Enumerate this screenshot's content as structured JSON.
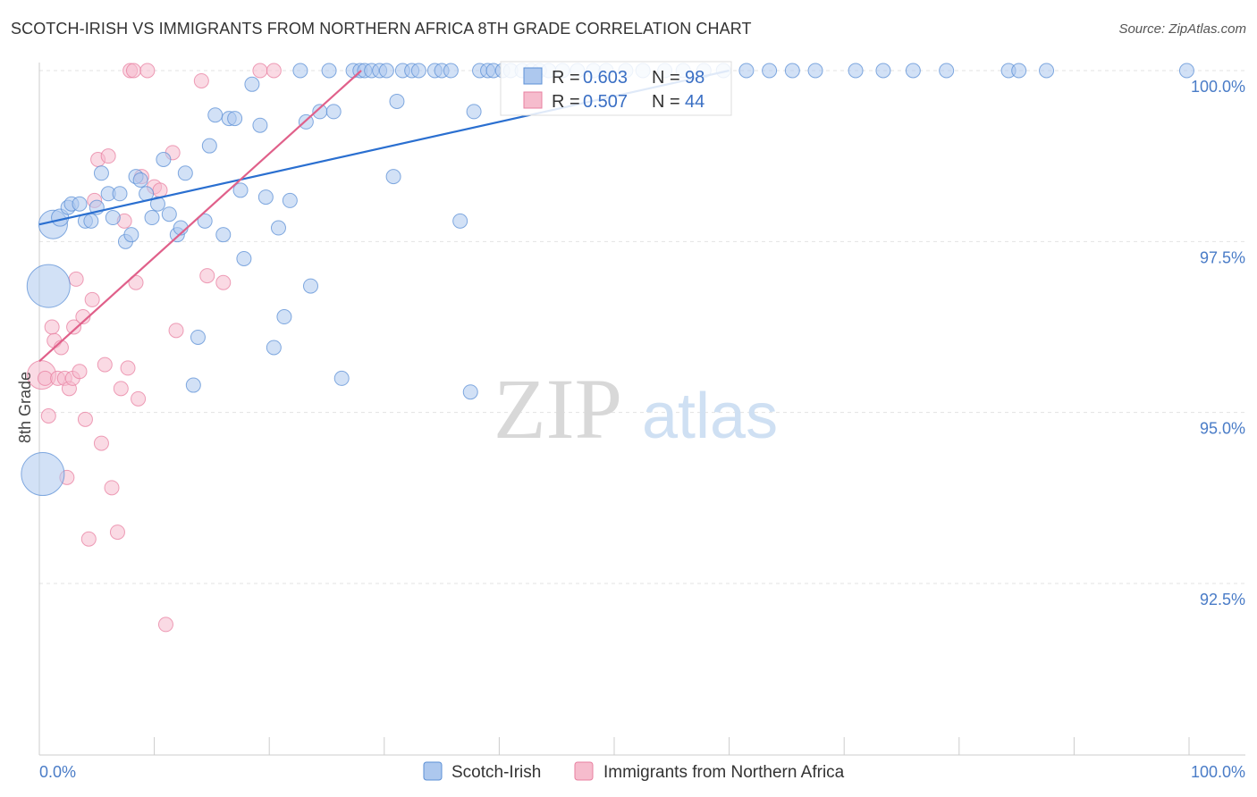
{
  "header": {
    "title": "SCOTCH-IRISH VS IMMIGRANTS FROM NORTHERN AFRICA 8TH GRADE CORRELATION CHART",
    "source": "Source: ZipAtlas.com"
  },
  "colors": {
    "blue": "#5b8fd6",
    "blue_fill": "#adc8ee",
    "blue_line": "#2a6fd0",
    "pink": "#e87fa0",
    "pink_fill": "#f6bccd",
    "pink_line": "#e0608a",
    "tick": "#4a7cc7",
    "grid": "#e3e3e3"
  },
  "watermark": {
    "zip": "ZIP",
    "atlas": "atlas"
  },
  "chart_data": {
    "type": "scatter",
    "title": "SCOTCH-IRISH VS IMMIGRANTS FROM NORTHERN AFRICA 8TH GRADE CORRELATION CHART",
    "xlabel": "",
    "ylabel": "8th Grade",
    "xlim": [
      0,
      100
    ],
    "ylim": [
      90.0,
      100.3
    ],
    "x_tick_labels": [
      "0.0%",
      "100.0%"
    ],
    "y_ticks": [
      92.5,
      95.0,
      97.5,
      100.0
    ],
    "y_tick_labels": [
      "92.5%",
      "95.0%",
      "97.5%",
      "100.0%"
    ],
    "grid": true,
    "legend": {
      "placement": "top-center",
      "entries": [
        {
          "r_label": "R = ",
          "r_value": "0.603",
          "n_label": "N = ",
          "n_value": "98"
        },
        {
          "r_label": "R = ",
          "r_value": "0.507",
          "n_label": "N = ",
          "n_value": "44"
        }
      ]
    },
    "series": [
      {
        "name": "Scotch-Irish",
        "color": "#5b8fd6",
        "trend": {
          "x": [
            0.0,
            60.0
          ],
          "y": [
            97.75,
            100.0
          ]
        },
        "points": [
          [
            0.3,
            94.1,
            3.0
          ],
          [
            0.8,
            96.85,
            3.0
          ],
          [
            1.2,
            97.75,
            2.0
          ],
          [
            1.8,
            97.85,
            1.2
          ],
          [
            2.5,
            98.0,
            1.0
          ],
          [
            2.8,
            98.05,
            1.0
          ],
          [
            3.5,
            98.05,
            1.0
          ],
          [
            4.0,
            97.8,
            1.0
          ],
          [
            4.5,
            97.8,
            1.0
          ],
          [
            5.0,
            98.0,
            1.0
          ],
          [
            5.4,
            98.5,
            1.0
          ],
          [
            6.0,
            98.2,
            1.0
          ],
          [
            6.4,
            97.85,
            1.0
          ],
          [
            7.0,
            98.2,
            1.0
          ],
          [
            7.5,
            97.5,
            1.0
          ],
          [
            8.0,
            97.6,
            1.0
          ],
          [
            8.4,
            98.45,
            1.0
          ],
          [
            8.8,
            98.4,
            1.0
          ],
          [
            9.3,
            98.2,
            1.0
          ],
          [
            9.8,
            97.85,
            1.0
          ],
          [
            10.3,
            98.05,
            1.0
          ],
          [
            10.8,
            98.7,
            1.0
          ],
          [
            11.3,
            97.9,
            1.0
          ],
          [
            12.0,
            97.6,
            1.0
          ],
          [
            12.3,
            97.7,
            1.0
          ],
          [
            12.7,
            98.5,
            1.0
          ],
          [
            13.4,
            95.4,
            1.0
          ],
          [
            13.8,
            96.1,
            1.0
          ],
          [
            14.4,
            97.8,
            1.0
          ],
          [
            14.8,
            98.9,
            1.0
          ],
          [
            15.3,
            99.35,
            1.0
          ],
          [
            16.0,
            97.6,
            1.0
          ],
          [
            16.5,
            99.3,
            1.0
          ],
          [
            17.0,
            99.3,
            1.0
          ],
          [
            17.5,
            98.25,
            1.0
          ],
          [
            17.8,
            97.25,
            1.0
          ],
          [
            18.5,
            99.8,
            1.0
          ],
          [
            19.2,
            99.2,
            1.0
          ],
          [
            19.7,
            98.15,
            1.0
          ],
          [
            20.4,
            95.95,
            1.0
          ],
          [
            20.8,
            97.7,
            1.0
          ],
          [
            21.3,
            96.4,
            1.0
          ],
          [
            21.8,
            98.1,
            1.0
          ],
          [
            22.7,
            100.0,
            1.0
          ],
          [
            23.2,
            99.25,
            1.0
          ],
          [
            23.6,
            96.85,
            1.0
          ],
          [
            24.4,
            99.4,
            1.0
          ],
          [
            25.2,
            100.0,
            1.0
          ],
          [
            25.6,
            99.4,
            1.0
          ],
          [
            26.3,
            95.5,
            1.0
          ],
          [
            27.3,
            100.0,
            1.0
          ],
          [
            27.9,
            100.0,
            1.0
          ],
          [
            28.3,
            100.0,
            1.0
          ],
          [
            28.9,
            100.0,
            1.0
          ],
          [
            29.6,
            100.0,
            1.0
          ],
          [
            30.2,
            100.0,
            1.0
          ],
          [
            30.8,
            98.45,
            1.0
          ],
          [
            31.1,
            99.55,
            1.0
          ],
          [
            31.6,
            100.0,
            1.0
          ],
          [
            32.4,
            100.0,
            1.0
          ],
          [
            33.0,
            100.0,
            1.0
          ],
          [
            34.4,
            100.0,
            1.0
          ],
          [
            35.0,
            100.0,
            1.0
          ],
          [
            35.8,
            100.0,
            1.0
          ],
          [
            36.6,
            97.8,
            1.0
          ],
          [
            37.5,
            95.3,
            1.0
          ],
          [
            37.8,
            99.4,
            1.0
          ],
          [
            38.3,
            100.0,
            1.0
          ],
          [
            39.0,
            100.0,
            1.0
          ],
          [
            39.5,
            100.0,
            1.0
          ],
          [
            40.3,
            100.0,
            1.0
          ],
          [
            41.0,
            100.0,
            1.0
          ],
          [
            42.0,
            100.0,
            1.0
          ],
          [
            42.8,
            100.0,
            1.0
          ],
          [
            43.5,
            100.0,
            1.0
          ],
          [
            44.3,
            100.0,
            1.0
          ],
          [
            45.5,
            100.0,
            1.0
          ],
          [
            46.8,
            100.0,
            1.0
          ],
          [
            48.2,
            100.0,
            1.0
          ],
          [
            49.3,
            100.0,
            1.0
          ],
          [
            51.0,
            100.0,
            1.0
          ],
          [
            52.5,
            100.0,
            1.0
          ],
          [
            54.4,
            100.0,
            1.0
          ],
          [
            56.0,
            100.0,
            1.0
          ],
          [
            57.8,
            100.0,
            1.0
          ],
          [
            59.5,
            100.0,
            1.0
          ],
          [
            61.5,
            100.0,
            1.0
          ],
          [
            63.5,
            100.0,
            1.0
          ],
          [
            65.5,
            100.0,
            1.0
          ],
          [
            67.5,
            100.0,
            1.0
          ],
          [
            71.0,
            100.0,
            1.0
          ],
          [
            73.4,
            100.0,
            1.0
          ],
          [
            76.0,
            100.0,
            1.0
          ],
          [
            78.9,
            100.0,
            1.0
          ],
          [
            84.3,
            100.0,
            1.0
          ],
          [
            85.2,
            100.0,
            1.0
          ],
          [
            87.6,
            100.0,
            1.0
          ],
          [
            99.8,
            100.0,
            1.0
          ]
        ]
      },
      {
        "name": "Immigrants from Northern Africa",
        "color": "#e87fa0",
        "trend": {
          "x": [
            0.0,
            28.0
          ],
          "y": [
            95.75,
            100.0
          ]
        },
        "points": [
          [
            0.2,
            95.55,
            2.0
          ],
          [
            0.5,
            95.5,
            1.0
          ],
          [
            0.8,
            94.95,
            1.0
          ],
          [
            1.1,
            96.25,
            1.0
          ],
          [
            1.3,
            96.05,
            1.0
          ],
          [
            1.6,
            95.5,
            1.0
          ],
          [
            1.9,
            95.95,
            1.0
          ],
          [
            2.2,
            95.5,
            1.0
          ],
          [
            2.4,
            94.05,
            1.0
          ],
          [
            2.6,
            95.35,
            1.0
          ],
          [
            2.9,
            95.5,
            1.0
          ],
          [
            3.0,
            96.25,
            1.0
          ],
          [
            3.2,
            96.95,
            1.0
          ],
          [
            3.5,
            95.6,
            1.0
          ],
          [
            3.8,
            96.4,
            1.0
          ],
          [
            4.0,
            94.9,
            1.0
          ],
          [
            4.3,
            93.15,
            1.0
          ],
          [
            4.6,
            96.65,
            1.0
          ],
          [
            4.8,
            98.1,
            1.0
          ],
          [
            5.1,
            98.7,
            1.0
          ],
          [
            5.4,
            94.55,
            1.0
          ],
          [
            5.7,
            95.7,
            1.0
          ],
          [
            6.0,
            98.75,
            1.0
          ],
          [
            6.3,
            93.9,
            1.0
          ],
          [
            6.8,
            93.25,
            1.0
          ],
          [
            7.1,
            95.35,
            1.0
          ],
          [
            7.4,
            97.8,
            1.0
          ],
          [
            7.7,
            95.65,
            1.0
          ],
          [
            7.9,
            100.0,
            1.0
          ],
          [
            8.2,
            100.0,
            1.0
          ],
          [
            8.4,
            96.9,
            1.0
          ],
          [
            8.6,
            95.2,
            1.0
          ],
          [
            8.9,
            98.45,
            1.0
          ],
          [
            9.4,
            100.0,
            1.0
          ],
          [
            10.0,
            98.3,
            1.0
          ],
          [
            10.5,
            98.25,
            1.0
          ],
          [
            11.0,
            91.9,
            1.0
          ],
          [
            11.6,
            98.8,
            1.0
          ],
          [
            11.9,
            96.2,
            1.0
          ],
          [
            14.1,
            99.85,
            1.0
          ],
          [
            14.6,
            97.0,
            1.0
          ],
          [
            16.0,
            96.9,
            1.0
          ],
          [
            19.2,
            100.0,
            1.0
          ],
          [
            20.4,
            100.0,
            1.0
          ]
        ]
      }
    ]
  }
}
